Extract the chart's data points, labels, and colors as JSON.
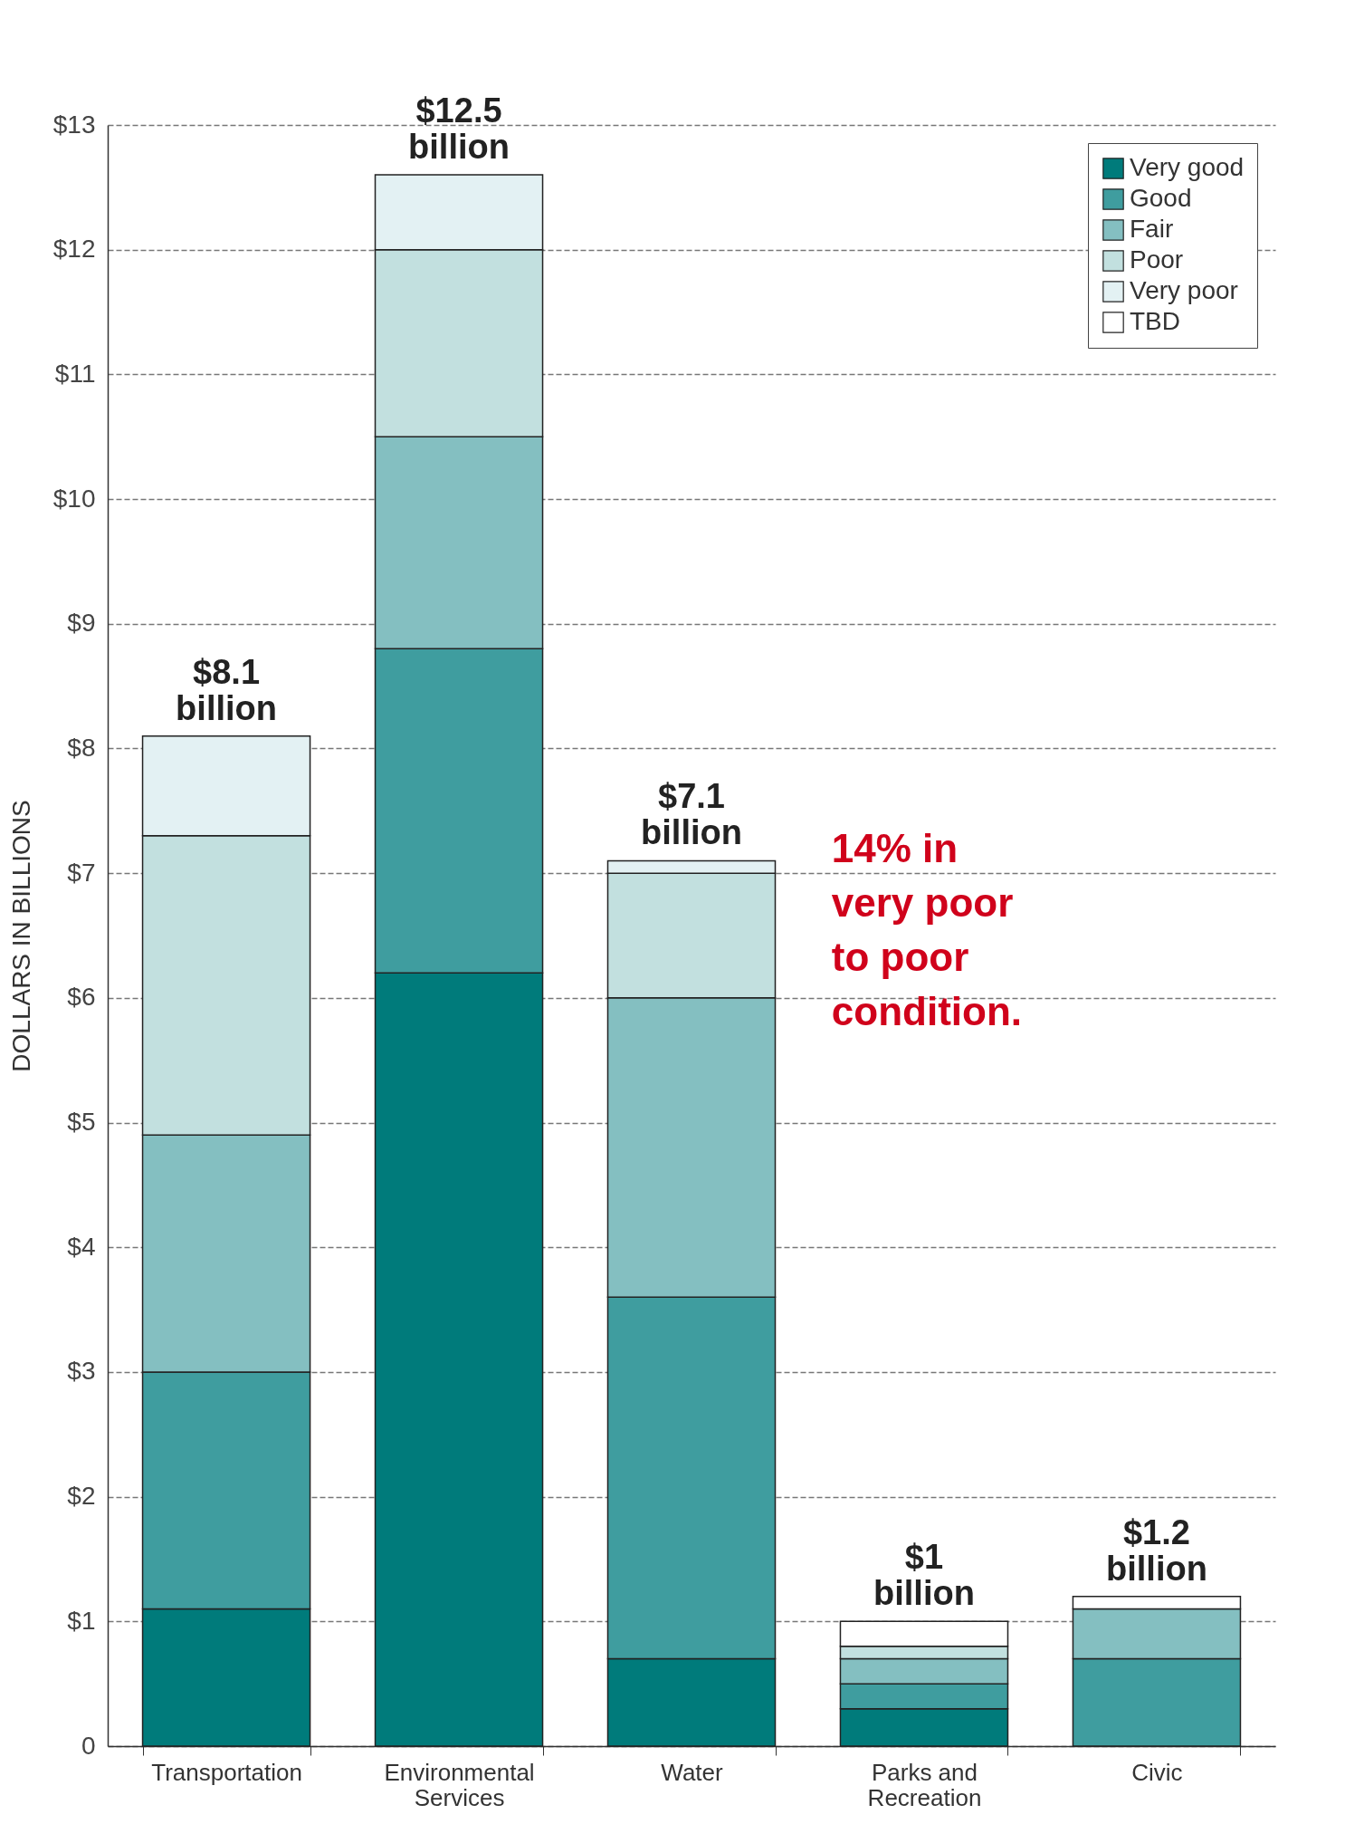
{
  "chart_data": {
    "type": "bar",
    "stacked": true,
    "ylabel": "DOLLARS IN BILLIONS",
    "categories": [
      "Transportation",
      "Environmental Services",
      "Water",
      "Parks and Recreation",
      "Civic"
    ],
    "series": [
      {
        "name": "Very good",
        "color": "#007b7b",
        "values": [
          1.1,
          6.2,
          0.7,
          0.3,
          0
        ]
      },
      {
        "name": "Good",
        "color": "#3f9d9f",
        "values": [
          1.9,
          2.6,
          2.9,
          0.2,
          0.7
        ]
      },
      {
        "name": "Fair",
        "color": "#84bfc1",
        "values": [
          1.9,
          1.7,
          2.4,
          0.2,
          0.4
        ]
      },
      {
        "name": "Poor",
        "color": "#c2e0df",
        "values": [
          2.4,
          1.5,
          1.0,
          0.1,
          0
        ]
      },
      {
        "name": "Very poor",
        "color": "#e3f1f3",
        "values": [
          0.8,
          0.6,
          0.1,
          0,
          0
        ]
      },
      {
        "name": "TBD",
        "color": "#ffffff",
        "values": [
          0,
          0,
          0,
          0.2,
          0.1
        ]
      }
    ],
    "totals": [
      "$8.1 billion",
      "$12.5 billion",
      "$7.1 billion",
      "$1 billion",
      "$1.2 billion"
    ],
    "ylim": [
      0,
      13
    ],
    "yticks": [
      {
        "value": 0,
        "label": "0"
      },
      {
        "value": 1,
        "label": "$1"
      },
      {
        "value": 2,
        "label": "$2"
      },
      {
        "value": 3,
        "label": "$3"
      },
      {
        "value": 4,
        "label": "$4"
      },
      {
        "value": 5,
        "label": "$5"
      },
      {
        "value": 6,
        "label": "$6"
      },
      {
        "value": 7,
        "label": "$7"
      },
      {
        "value": 8,
        "label": "$8"
      },
      {
        "value": 9,
        "label": "$9"
      },
      {
        "value": 10,
        "label": "$10"
      },
      {
        "value": 11,
        "label": "$11"
      },
      {
        "value": 12,
        "label": "$12"
      },
      {
        "value": 13,
        "label": "$13"
      }
    ],
    "grid": "y",
    "legend": "top right",
    "annotations": [
      "14% in\nvery poor\nto poor\ncondition."
    ]
  }
}
